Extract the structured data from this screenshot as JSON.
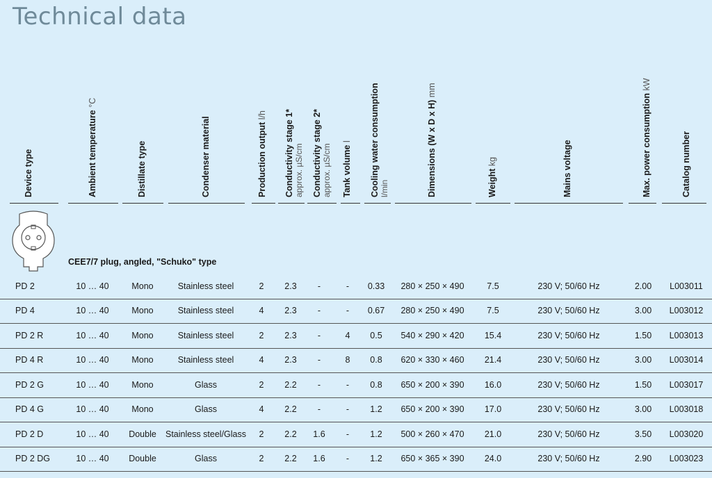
{
  "title": "Technical data",
  "headers": [
    {
      "label": "Device type",
      "unit": "",
      "sub": ""
    },
    {
      "label": "Ambient temperature",
      "unit": "°C",
      "sub": ""
    },
    {
      "label": "Distillate type",
      "unit": "",
      "sub": ""
    },
    {
      "label": "Condenser material",
      "unit": "",
      "sub": ""
    },
    {
      "label": "Production output",
      "unit": "l/h",
      "sub": ""
    },
    {
      "label": "Conductivity stage 1*",
      "unit": "",
      "sub": "approx. µS/cm"
    },
    {
      "label": "Conductivity stage 2*",
      "unit": "",
      "sub": "approx. µS/cm"
    },
    {
      "label": "Tank volume",
      "unit": "l",
      "sub": ""
    },
    {
      "label": "Cooling water consumption",
      "unit": "",
      "sub": "l/min"
    },
    {
      "label": "Dimensions (W x D x H)",
      "unit": "mm",
      "sub": ""
    },
    {
      "label": "Weight",
      "unit": "kg",
      "sub": ""
    },
    {
      "label": "Mains voltage",
      "unit": "",
      "sub": ""
    },
    {
      "label": "Max. power consumption",
      "unit": "kW",
      "sub": ""
    },
    {
      "label": "Catalog number",
      "unit": "",
      "sub": ""
    }
  ],
  "plug": {
    "icon": "schuko-plug-icon",
    "label": "CEE7/7 plug, angled, \"Schuko\" type"
  },
  "rows": [
    [
      "PD 2",
      "10 … 40",
      "Mono",
      "Stainless steel",
      "2",
      "2.3",
      "-",
      "-",
      "0.33",
      "280 × 250 × 490",
      "7.5",
      "230 V; 50/60 Hz",
      "2.00",
      "L003011"
    ],
    [
      "PD 4",
      "10 … 40",
      "Mono",
      "Stainless steel",
      "4",
      "2.3",
      "-",
      "-",
      "0.67",
      "280 × 250 × 490",
      "7.5",
      "230 V; 50/60 Hz",
      "3.00",
      "L003012"
    ],
    [
      "PD 2 R",
      "10 … 40",
      "Mono",
      "Stainless steel",
      "2",
      "2.3",
      "-",
      "4",
      "0.5",
      "540 × 290 × 420",
      "15.4",
      "230 V; 50/60 Hz",
      "1.50",
      "L003013"
    ],
    [
      "PD 4 R",
      "10 … 40",
      "Mono",
      "Stainless steel",
      "4",
      "2.3",
      "-",
      "8",
      "0.8",
      "620 × 330 × 460",
      "21.4",
      "230 V; 50/60 Hz",
      "3.00",
      "L003014"
    ],
    [
      "PD 2 G",
      "10 … 40",
      "Mono",
      "Glass",
      "2",
      "2.2",
      "-",
      "-",
      "0.8",
      "650 × 200 × 390",
      "16.0",
      "230 V; 50/60 Hz",
      "1.50",
      "L003017"
    ],
    [
      "PD 4 G",
      "10 … 40",
      "Mono",
      "Glass",
      "4",
      "2.2",
      "-",
      "-",
      "1.2",
      "650 × 200 × 390",
      "17.0",
      "230 V; 50/60 Hz",
      "3.00",
      "L003018"
    ],
    [
      "PD 2 D",
      "10 … 40",
      "Double",
      "Stainless steel/Glass",
      "2",
      "2.2",
      "1.6",
      "-",
      "1.2",
      "500 × 260 × 470",
      "21.0",
      "230 V; 50/60 Hz",
      "3.50",
      "L003020"
    ],
    [
      "PD 2 DG",
      "10 … 40",
      "Double",
      "Glass",
      "2",
      "2.2",
      "1.6",
      "-",
      "1.2",
      "650 × 365 × 390",
      "24.0",
      "230 V; 50/60 Hz",
      "2.90",
      "L003023"
    ]
  ]
}
